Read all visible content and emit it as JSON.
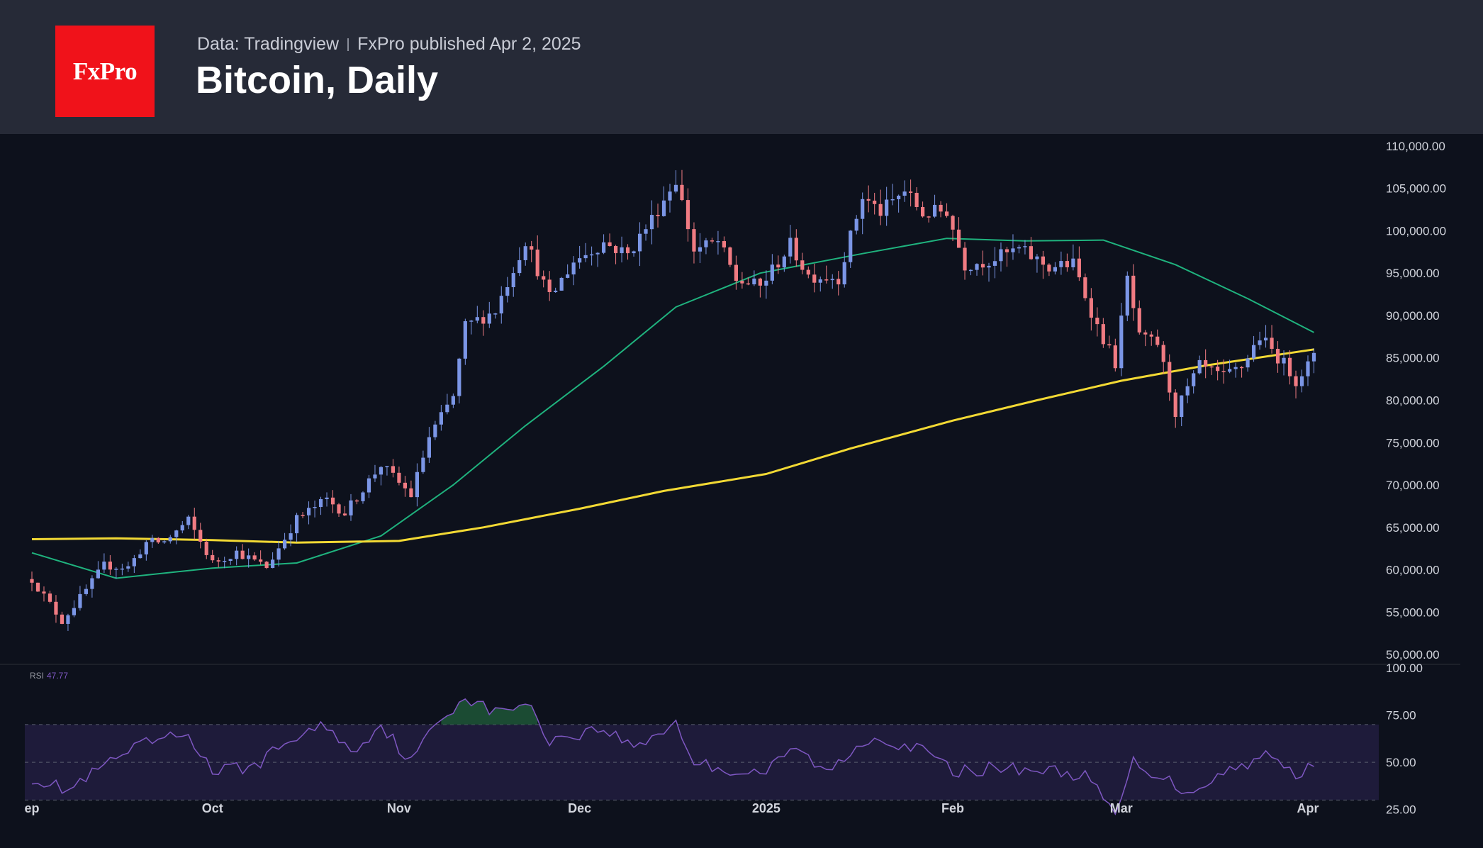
{
  "header": {
    "logo_text": "FxPro",
    "source": "Data: Tradingview",
    "published": "FxPro published Apr 2, 2025",
    "title": "Bitcoin, Daily"
  },
  "rsi_panel": {
    "label": "RSI",
    "value": "47.77"
  },
  "colors": {
    "up": "#7b96e6",
    "down": "#f07b82",
    "ma_fast": "#1fb37e",
    "ma_slow": "#f2d934",
    "rsi_line": "#7e57c2",
    "rsi_band": "#1e1b3a",
    "background": "#0d111c",
    "header": "#262a37",
    "logo": "#f0121a"
  },
  "chart_data": {
    "type": "candlestick",
    "price_axis": {
      "ylim": [
        48000,
        112000
      ],
      "ticks": [
        "110,000.00",
        "105,000.00",
        "100,000.00",
        "95,000.00",
        "90,000.00",
        "85,000.00",
        "80,000.00",
        "75,000.00",
        "70,000.00",
        "65,000.00",
        "60,000.00",
        "55,000.00",
        "50,000.00"
      ]
    },
    "rsi_axis": {
      "ylim": [
        20,
        100
      ],
      "ticks": [
        "100.00",
        "75.00",
        "50.00",
        "25.00"
      ],
      "band": [
        30,
        70
      ]
    },
    "x_ticks": [
      {
        "label": "ep",
        "date": "2024-09-01"
      },
      {
        "label": "Oct",
        "date": "2024-10-01"
      },
      {
        "label": "Nov",
        "date": "2024-11-01"
      },
      {
        "label": "Dec",
        "date": "2024-12-01"
      },
      {
        "label": "2025",
        "date": "2025-01-01"
      },
      {
        "label": "Feb",
        "date": "2025-02-01"
      },
      {
        "label": "Mar",
        "date": "2025-03-01"
      },
      {
        "label": "Apr",
        "date": "2025-04-01"
      }
    ],
    "close_path": [
      [
        "2024-09-01",
        58900
      ],
      [
        "2024-09-06",
        53950
      ],
      [
        "2024-09-10",
        57600
      ],
      [
        "2024-09-13",
        60500
      ],
      [
        "2024-09-17",
        60300
      ],
      [
        "2024-09-20",
        63200
      ],
      [
        "2024-09-23",
        63300
      ],
      [
        "2024-09-27",
        65800
      ],
      [
        "2024-10-01",
        60800
      ],
      [
        "2024-10-05",
        62100
      ],
      [
        "2024-10-10",
        60300
      ],
      [
        "2024-10-15",
        66000
      ],
      [
        "2024-10-20",
        68300
      ],
      [
        "2024-10-23",
        66700
      ],
      [
        "2024-10-29",
        72400
      ],
      [
        "2024-11-03",
        68800
      ],
      [
        "2024-11-06",
        75600
      ],
      [
        "2024-11-10",
        80400
      ],
      [
        "2024-11-12",
        88700
      ],
      [
        "2024-11-17",
        90600
      ],
      [
        "2024-11-22",
        98900
      ],
      [
        "2024-11-26",
        92000
      ],
      [
        "2024-11-30",
        96400
      ],
      [
        "2024-12-05",
        98600
      ],
      [
        "2024-12-09",
        97200
      ],
      [
        "2024-12-13",
        101400
      ],
      [
        "2024-12-17",
        106100
      ],
      [
        "2024-12-20",
        97700
      ],
      [
        "2024-12-24",
        98700
      ],
      [
        "2024-12-27",
        94200
      ],
      [
        "2024-12-31",
        93400
      ],
      [
        "2025-01-05",
        98300
      ],
      [
        "2025-01-08",
        94700
      ],
      [
        "2025-01-13",
        94500
      ],
      [
        "2025-01-17",
        104000
      ],
      [
        "2025-01-20",
        102200
      ],
      [
        "2025-01-24",
        104700
      ],
      [
        "2025-01-27",
        102000
      ],
      [
        "2025-01-31",
        102400
      ],
      [
        "2025-02-03",
        96000
      ],
      [
        "2025-02-07",
        96500
      ],
      [
        "2025-02-12",
        97800
      ],
      [
        "2025-02-17",
        95700
      ],
      [
        "2025-02-21",
        96100
      ],
      [
        "2025-02-25",
        88700
      ],
      [
        "2025-02-28",
        84400
      ],
      [
        "2025-03-02",
        94300
      ],
      [
        "2025-03-04",
        87300
      ],
      [
        "2025-03-07",
        86700
      ],
      [
        "2025-03-10",
        78600
      ],
      [
        "2025-03-14",
        84000
      ],
      [
        "2025-03-18",
        82700
      ],
      [
        "2025-03-21",
        84000
      ],
      [
        "2025-03-24",
        87500
      ],
      [
        "2025-03-28",
        84300
      ],
      [
        "2025-03-30",
        82400
      ],
      [
        "2025-04-02",
        85000
      ]
    ],
    "series": [
      {
        "name": "Moving average (fast)",
        "points": [
          [
            "2024-09-01",
            62000
          ],
          [
            "2024-09-15",
            59000
          ],
          [
            "2024-10-01",
            60200
          ],
          [
            "2024-10-15",
            60800
          ],
          [
            "2024-10-29",
            64000
          ],
          [
            "2024-11-10",
            70000
          ],
          [
            "2024-11-22",
            77000
          ],
          [
            "2024-12-05",
            84000
          ],
          [
            "2024-12-17",
            91000
          ],
          [
            "2024-12-31",
            95000
          ],
          [
            "2025-01-17",
            97300
          ],
          [
            "2025-01-31",
            99100
          ],
          [
            "2025-02-13",
            98800
          ],
          [
            "2025-02-26",
            98900
          ],
          [
            "2025-03-10",
            96000
          ],
          [
            "2025-03-22",
            92000
          ],
          [
            "2025-04-02",
            88000
          ]
        ]
      },
      {
        "name": "Moving average (slow)",
        "points": [
          [
            "2024-09-01",
            63600
          ],
          [
            "2024-09-15",
            63700
          ],
          [
            "2024-10-01",
            63500
          ],
          [
            "2024-10-15",
            63200
          ],
          [
            "2024-11-01",
            63400
          ],
          [
            "2024-11-15",
            65000
          ],
          [
            "2024-12-01",
            67200
          ],
          [
            "2024-12-15",
            69300
          ],
          [
            "2025-01-01",
            71300
          ],
          [
            "2025-01-15",
            74300
          ],
          [
            "2025-02-01",
            77600
          ],
          [
            "2025-02-15",
            80000
          ],
          [
            "2025-03-01",
            82300
          ],
          [
            "2025-03-15",
            84100
          ],
          [
            "2025-04-02",
            86000
          ]
        ]
      },
      {
        "name": "RSI",
        "points": [
          [
            "2024-09-01",
            42
          ],
          [
            "2024-09-07",
            35
          ],
          [
            "2024-09-14",
            50
          ],
          [
            "2024-09-20",
            60
          ],
          [
            "2024-09-27",
            65
          ],
          [
            "2024-10-01",
            45
          ],
          [
            "2024-10-08",
            48
          ],
          [
            "2024-10-14",
            62
          ],
          [
            "2024-10-20",
            70
          ],
          [
            "2024-10-24",
            55
          ],
          [
            "2024-10-29",
            70
          ],
          [
            "2024-11-03",
            50
          ],
          [
            "2024-11-07",
            70
          ],
          [
            "2024-11-12",
            85
          ],
          [
            "2024-11-17",
            76
          ],
          [
            "2024-11-22",
            82
          ],
          [
            "2024-11-26",
            62
          ],
          [
            "2024-12-05",
            68
          ],
          [
            "2024-12-10",
            58
          ],
          [
            "2024-12-17",
            71
          ],
          [
            "2024-12-20",
            50
          ],
          [
            "2024-12-27",
            45
          ],
          [
            "2025-01-01",
            45
          ],
          [
            "2025-01-06",
            58
          ],
          [
            "2025-01-11",
            44
          ],
          [
            "2025-01-18",
            63
          ],
          [
            "2025-01-21",
            62
          ],
          [
            "2025-01-28",
            55
          ],
          [
            "2025-02-01",
            45
          ],
          [
            "2025-02-08",
            47
          ],
          [
            "2025-02-16",
            46
          ],
          [
            "2025-02-23",
            43
          ],
          [
            "2025-02-28",
            22
          ],
          [
            "2025-03-03",
            50
          ],
          [
            "2025-03-08",
            42
          ],
          [
            "2025-03-12",
            34
          ],
          [
            "2025-03-17",
            43
          ],
          [
            "2025-03-25",
            54
          ],
          [
            "2025-03-30",
            44
          ],
          [
            "2025-04-02",
            47.77
          ]
        ]
      }
    ]
  }
}
